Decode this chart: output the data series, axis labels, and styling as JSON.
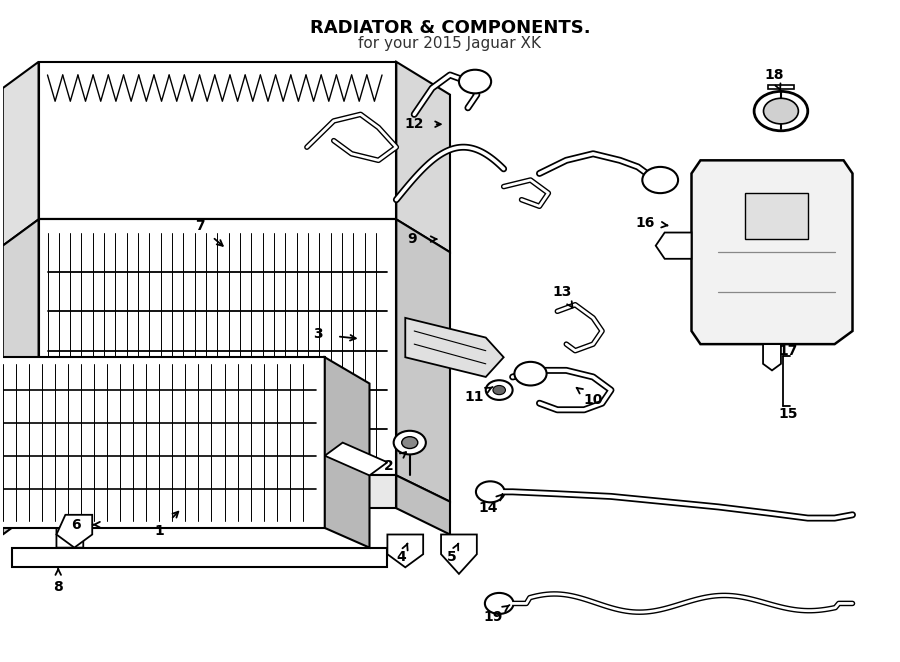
{
  "title": "RADIATOR & COMPONENTS.",
  "subtitle": "for your 2015 Jaguar XK",
  "title_fontsize": 13,
  "subtitle_fontsize": 11,
  "background_color": "#ffffff",
  "title_color": "#000000",
  "subtitle_color": "#333333",
  "fig_width": 9.0,
  "fig_height": 6.62
}
